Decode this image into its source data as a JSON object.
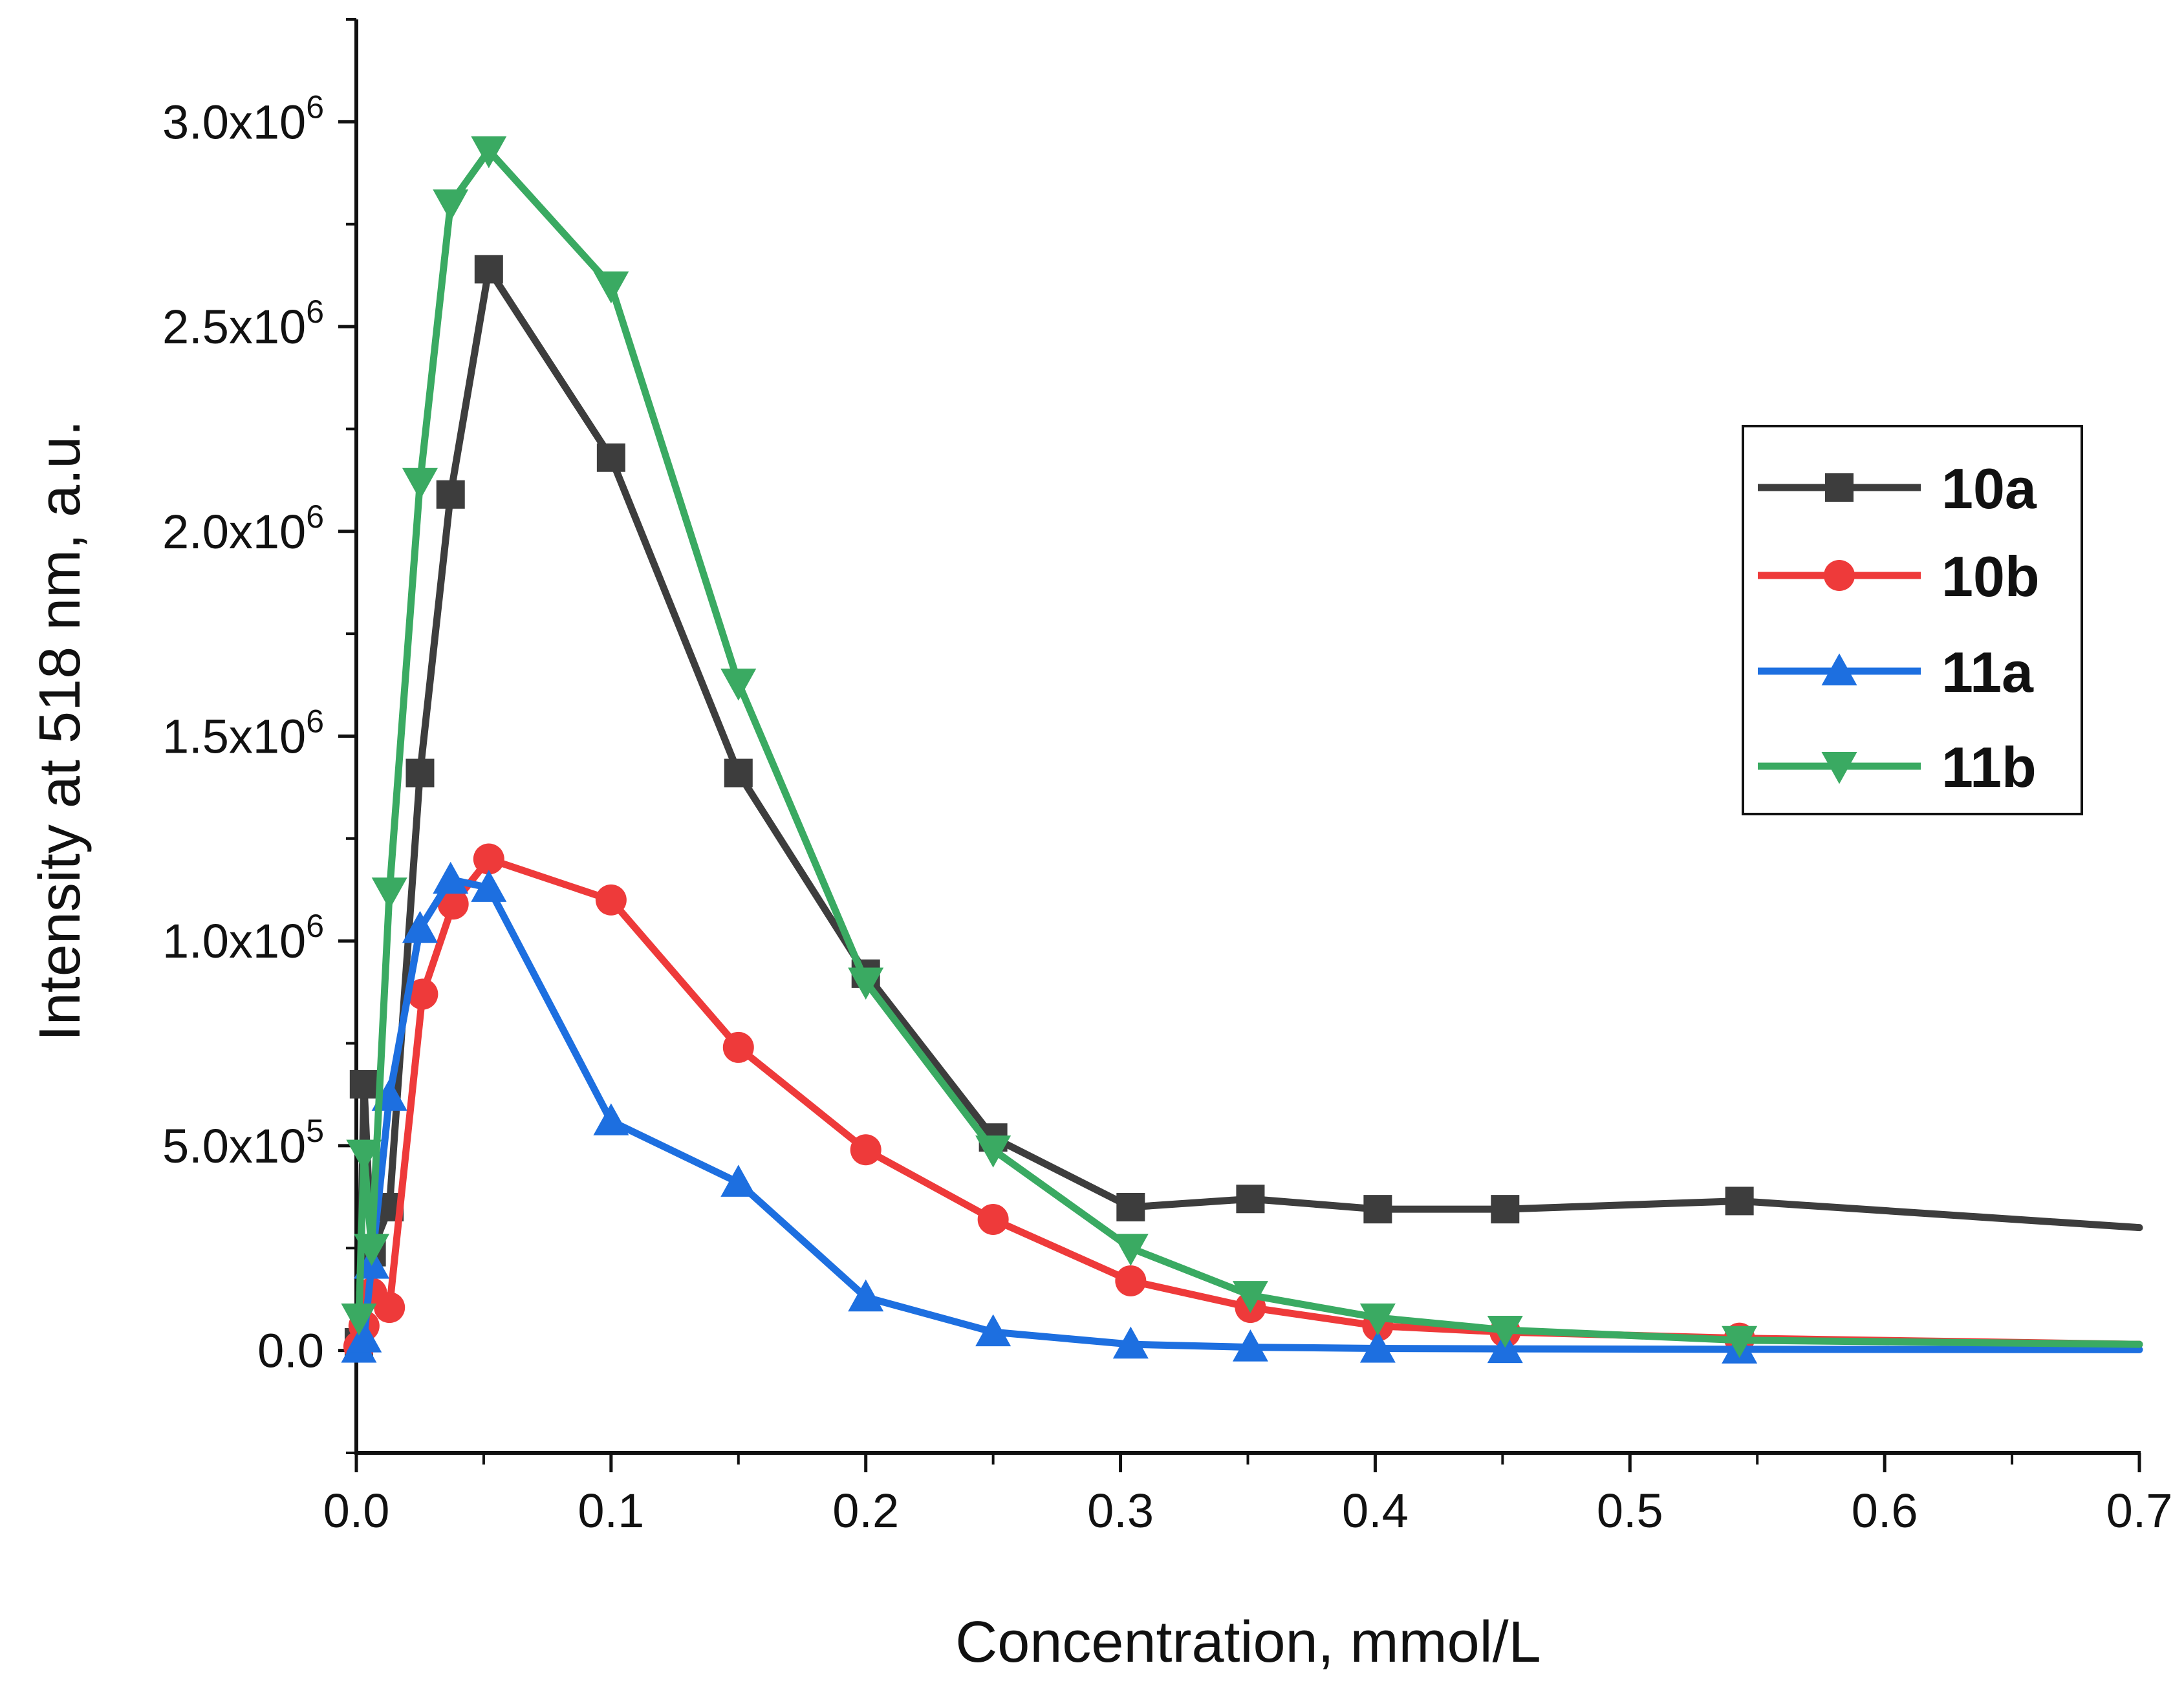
{
  "chart_data": {
    "type": "line",
    "title": "",
    "xlabel": "Concentration, mmol/L",
    "ylabel": "Intensity at 518 nm, a.u.",
    "xlim": [
      0,
      0.7
    ],
    "ylim": [
      -250000,
      3250000
    ],
    "grid": false,
    "legend_position": "right",
    "x_ticks": [
      {
        "value": 0.0,
        "label": "0.0"
      },
      {
        "value": 0.1,
        "label": "0.1"
      },
      {
        "value": 0.2,
        "label": "0.2"
      },
      {
        "value": 0.3,
        "label": "0.3"
      },
      {
        "value": 0.4,
        "label": "0.4"
      },
      {
        "value": 0.5,
        "label": "0.5"
      },
      {
        "value": 0.6,
        "label": "0.6"
      },
      {
        "value": 0.7,
        "label": "0.7"
      }
    ],
    "y_ticks": [
      {
        "value": 0,
        "mant": "0.0",
        "exp": ""
      },
      {
        "value": 500000,
        "mant": "5.0x10",
        "exp": "5"
      },
      {
        "value": 1000000,
        "mant": "1.0x10",
        "exp": "6"
      },
      {
        "value": 1500000,
        "mant": "1.5x10",
        "exp": "6"
      },
      {
        "value": 2000000,
        "mant": "2.0x10",
        "exp": "6"
      },
      {
        "value": 2500000,
        "mant": "2.5x10",
        "exp": "6"
      },
      {
        "value": 3000000,
        "mant": "3.0x10",
        "exp": "6"
      }
    ],
    "series": [
      {
        "name": "10a",
        "color": "#3d3d3d",
        "marker": "square",
        "x": [
          0.001,
          0.003,
          0.006,
          0.013,
          0.025,
          0.037,
          0.052,
          0.1,
          0.15,
          0.2,
          0.25,
          0.304,
          0.351,
          0.401,
          0.451,
          0.543,
          0.7
        ],
        "y": [
          20000,
          650000,
          240000,
          350000,
          1410000,
          2090000,
          2640000,
          2180000,
          1410000,
          920000,
          520000,
          350000,
          370000,
          345000,
          345000,
          365000,
          300000
        ]
      },
      {
        "name": "10b",
        "color": "#ee3a3a",
        "marker": "circle",
        "x": [
          0.001,
          0.003,
          0.006,
          0.013,
          0.026,
          0.038,
          0.052,
          0.1,
          0.15,
          0.2,
          0.25,
          0.304,
          0.351,
          0.401,
          0.451,
          0.543,
          0.7
        ],
        "y": [
          10000,
          60000,
          140000,
          105000,
          870000,
          1090000,
          1200000,
          1100000,
          740000,
          490000,
          320000,
          170000,
          105000,
          60000,
          45000,
          30000,
          15000
        ]
      },
      {
        "name": "11a",
        "color": "#1d6fe0",
        "marker": "triangle-up",
        "x": [
          0.001,
          0.003,
          0.006,
          0.013,
          0.025,
          0.037,
          0.052,
          0.1,
          0.15,
          0.2,
          0.25,
          0.304,
          0.351,
          0.401,
          0.451,
          0.543,
          0.7
        ],
        "y": [
          5000,
          30000,
          210000,
          620000,
          1030000,
          1150000,
          1130000,
          560000,
          410000,
          130000,
          45000,
          15000,
          8000,
          5000,
          4000,
          3000,
          2000
        ]
      },
      {
        "name": "11b",
        "color": "#3aaa62",
        "marker": "triangle-down",
        "x": [
          0.001,
          0.003,
          0.006,
          0.013,
          0.025,
          0.037,
          0.052,
          0.1,
          0.15,
          0.2,
          0.25,
          0.304,
          0.351,
          0.401,
          0.451,
          0.543,
          0.7
        ],
        "y": [
          80000,
          480000,
          250000,
          1120000,
          2120000,
          2800000,
          2930000,
          2600000,
          1630000,
          900000,
          490000,
          250000,
          135000,
          80000,
          50000,
          25000,
          15000
        ]
      }
    ]
  }
}
